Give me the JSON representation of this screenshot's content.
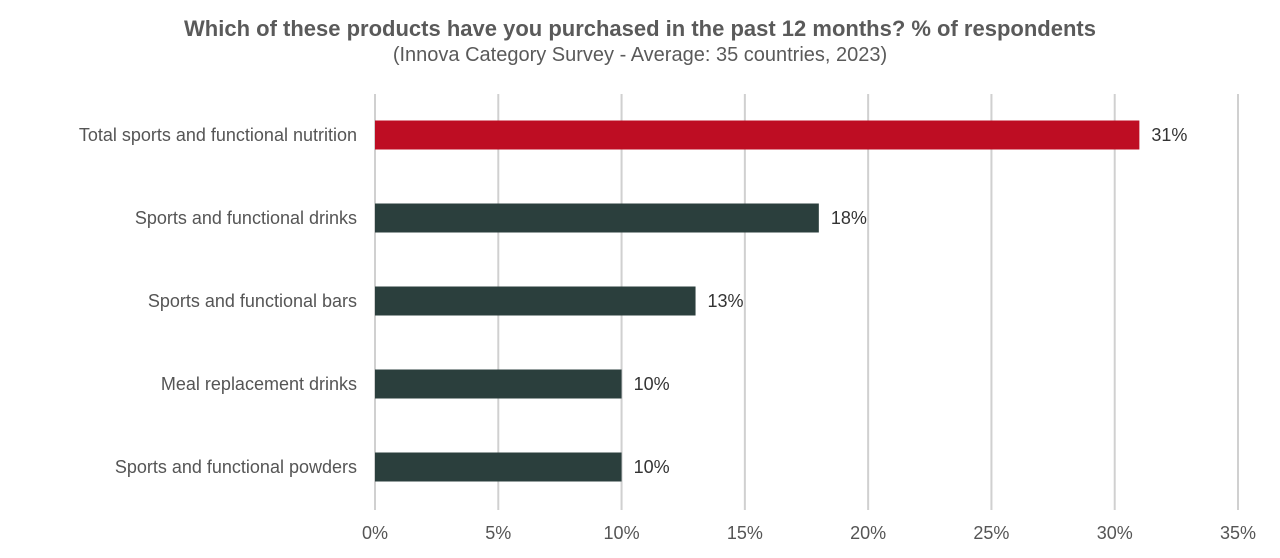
{
  "chart_data": {
    "type": "bar",
    "orientation": "horizontal",
    "title": "Which of these products have you purchased in the past 12 months? % of respondents",
    "subtitle": "(Innova Category Survey - Average: 35 countries, 2023)",
    "categories": [
      "Total sports and functional nutrition",
      "Sports and functional drinks",
      "Sports and functional bars",
      "Meal replacement drinks",
      "Sports and functional powders"
    ],
    "values": [
      31,
      18,
      13,
      10,
      10
    ],
    "data_labels": [
      "31%",
      "18%",
      "13%",
      "10%",
      "10%"
    ],
    "xlim": [
      0,
      35
    ],
    "ticks": [
      0,
      5,
      10,
      15,
      20,
      25,
      30,
      35
    ],
    "tick_labels": [
      "0%",
      "5%",
      "10%",
      "15%",
      "20%",
      "25%",
      "30%",
      "35%"
    ],
    "grid": "vertical",
    "legend": "none",
    "colors": {
      "highlight": "#be0d23",
      "default": "#2b3f3d",
      "grid": "#d0d0d0"
    },
    "highlight_index": 0
  }
}
